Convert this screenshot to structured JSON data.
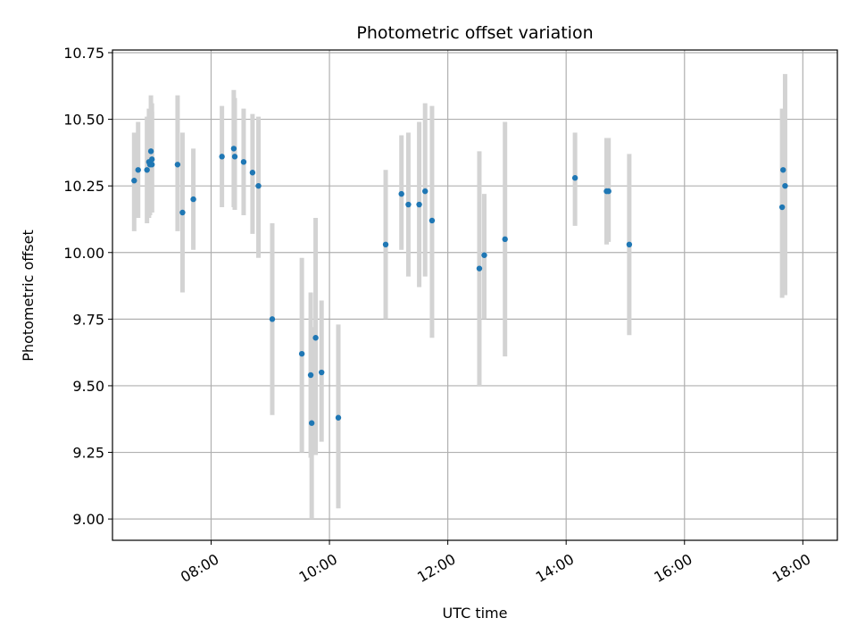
{
  "chart_data": {
    "type": "scatter",
    "title": "Photometric offset variation",
    "xlabel": "UTC time",
    "ylabel": "Photometric offset",
    "xlim": [
      "06:20",
      "18:35"
    ],
    "ylim": [
      8.92,
      10.76
    ],
    "x_ticks": [
      "08:00",
      "10:00",
      "12:00",
      "14:00",
      "16:00",
      "18:00"
    ],
    "y_ticks": [
      9.0,
      9.25,
      9.5,
      9.75,
      10.0,
      10.25,
      10.5,
      10.75
    ],
    "y_tick_labels": [
      "9.00",
      "9.25",
      "9.50",
      "9.75",
      "10.00",
      "10.25",
      "10.50",
      "10.75"
    ],
    "grid": true,
    "marker_color": "#1f77b4",
    "errorbar_color": "#d3d3d3",
    "points": [
      {
        "x": "06:42",
        "y": 10.27,
        "yerr_low": 10.08,
        "yerr_high": 10.45
      },
      {
        "x": "06:46",
        "y": 10.31,
        "yerr_low": 10.13,
        "yerr_high": 10.49
      },
      {
        "x": "06:55",
        "y": 10.31,
        "yerr_low": 10.11,
        "yerr_high": 10.51
      },
      {
        "x": "06:57",
        "y": 10.34,
        "yerr_low": 10.13,
        "yerr_high": 10.54
      },
      {
        "x": "06:58",
        "y": 10.33,
        "yerr_low": 10.14,
        "yerr_high": 10.52
      },
      {
        "x": "06:59",
        "y": 10.38,
        "yerr_low": 10.17,
        "yerr_high": 10.59
      },
      {
        "x": "07:00",
        "y": 10.35,
        "yerr_low": 10.15,
        "yerr_high": 10.56
      },
      {
        "x": "07:00",
        "y": 10.33,
        "yerr_low": 10.15,
        "yerr_high": 10.53
      },
      {
        "x": "07:26",
        "y": 10.33,
        "yerr_low": 10.08,
        "yerr_high": 10.59
      },
      {
        "x": "07:31",
        "y": 10.15,
        "yerr_low": 9.85,
        "yerr_high": 10.45
      },
      {
        "x": "07:42",
        "y": 10.2,
        "yerr_low": 10.01,
        "yerr_high": 10.39
      },
      {
        "x": "08:11",
        "y": 10.36,
        "yerr_low": 10.17,
        "yerr_high": 10.55
      },
      {
        "x": "08:23",
        "y": 10.39,
        "yerr_low": 10.17,
        "yerr_high": 10.61
      },
      {
        "x": "08:24",
        "y": 10.36,
        "yerr_low": 10.16,
        "yerr_high": 10.58
      },
      {
        "x": "08:33",
        "y": 10.34,
        "yerr_low": 10.14,
        "yerr_high": 10.54
      },
      {
        "x": "08:42",
        "y": 10.3,
        "yerr_low": 10.07,
        "yerr_high": 10.52
      },
      {
        "x": "08:48",
        "y": 10.25,
        "yerr_low": 9.98,
        "yerr_high": 10.51
      },
      {
        "x": "09:02",
        "y": 9.75,
        "yerr_low": 9.39,
        "yerr_high": 10.11
      },
      {
        "x": "09:32",
        "y": 9.62,
        "yerr_low": 9.25,
        "yerr_high": 9.98
      },
      {
        "x": "09:41",
        "y": 9.54,
        "yerr_low": 9.23,
        "yerr_high": 9.85
      },
      {
        "x": "09:42",
        "y": 9.36,
        "yerr_low": 9.0,
        "yerr_high": 9.72
      },
      {
        "x": "09:46",
        "y": 9.68,
        "yerr_low": 9.24,
        "yerr_high": 10.13
      },
      {
        "x": "09:52",
        "y": 9.55,
        "yerr_low": 9.29,
        "yerr_high": 9.82
      },
      {
        "x": "10:09",
        "y": 9.38,
        "yerr_low": 9.04,
        "yerr_high": 9.73
      },
      {
        "x": "10:57",
        "y": 10.03,
        "yerr_low": 9.75,
        "yerr_high": 10.31
      },
      {
        "x": "11:13",
        "y": 10.22,
        "yerr_low": 10.01,
        "yerr_high": 10.44
      },
      {
        "x": "11:20",
        "y": 10.18,
        "yerr_low": 9.91,
        "yerr_high": 10.45
      },
      {
        "x": "11:31",
        "y": 10.18,
        "yerr_low": 9.87,
        "yerr_high": 10.49
      },
      {
        "x": "11:37",
        "y": 10.23,
        "yerr_low": 9.91,
        "yerr_high": 10.56
      },
      {
        "x": "11:44",
        "y": 10.12,
        "yerr_low": 9.68,
        "yerr_high": 10.55
      },
      {
        "x": "12:32",
        "y": 9.94,
        "yerr_low": 9.5,
        "yerr_high": 10.38
      },
      {
        "x": "12:37",
        "y": 9.99,
        "yerr_low": 9.75,
        "yerr_high": 10.22
      },
      {
        "x": "12:58",
        "y": 10.05,
        "yerr_low": 9.61,
        "yerr_high": 10.49
      },
      {
        "x": "14:09",
        "y": 10.28,
        "yerr_low": 10.1,
        "yerr_high": 10.45
      },
      {
        "x": "14:41",
        "y": 10.23,
        "yerr_low": 10.03,
        "yerr_high": 10.43
      },
      {
        "x": "14:43",
        "y": 10.23,
        "yerr_low": 10.04,
        "yerr_high": 10.43
      },
      {
        "x": "15:04",
        "y": 10.03,
        "yerr_low": 9.69,
        "yerr_high": 10.37
      },
      {
        "x": "17:39",
        "y": 10.17,
        "yerr_low": 9.83,
        "yerr_high": 10.54
      },
      {
        "x": "17:40",
        "y": 10.31,
        "yerr_low": 10.09,
        "yerr_high": 10.51
      },
      {
        "x": "17:42",
        "y": 10.25,
        "yerr_low": 9.84,
        "yerr_high": 10.67
      }
    ]
  }
}
